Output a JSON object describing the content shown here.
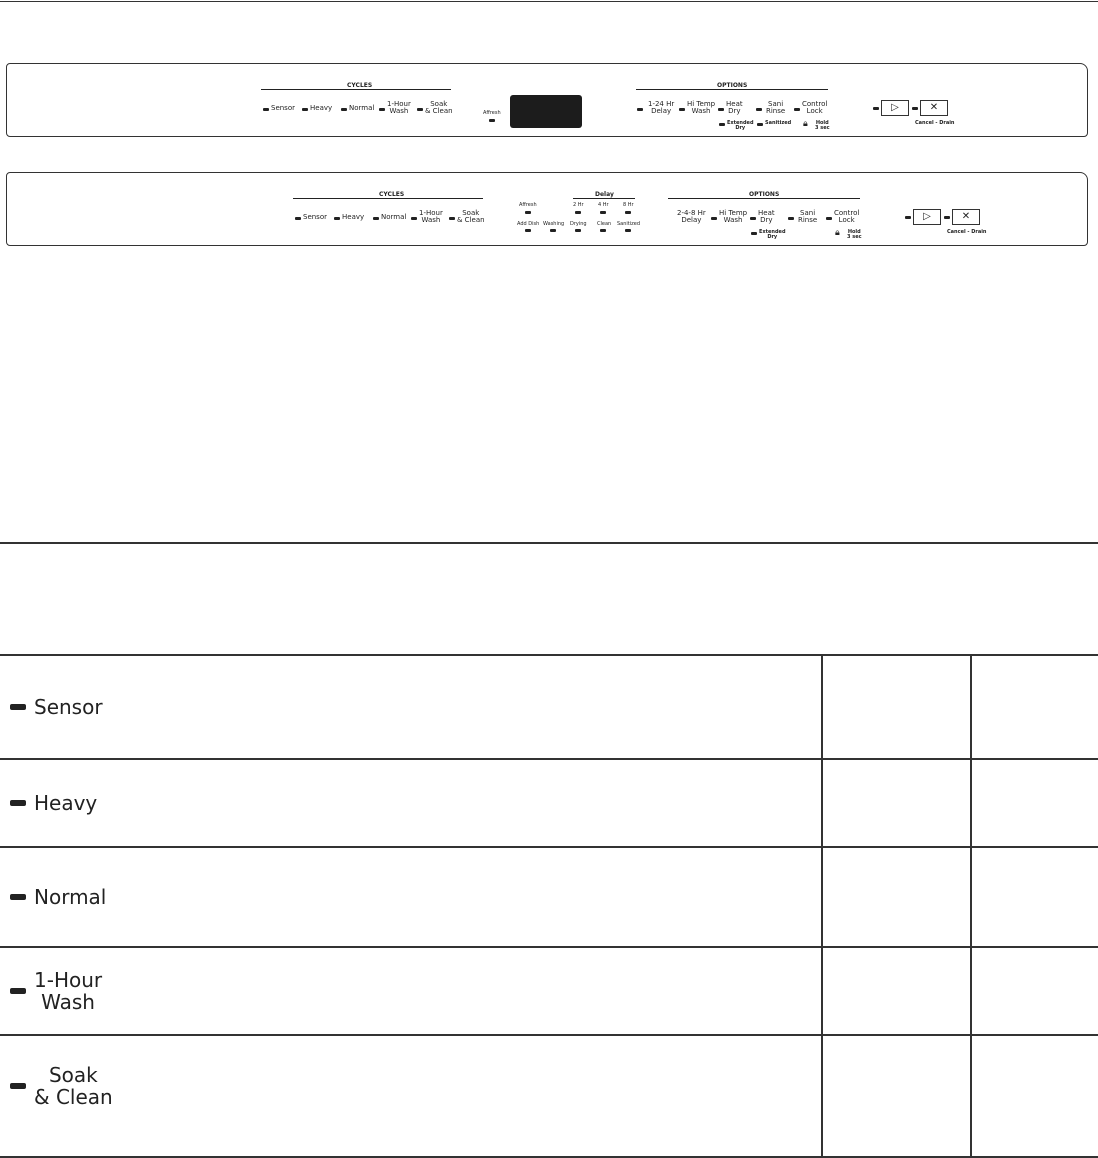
{
  "panel1": {
    "cycles_title": "CYCLES",
    "cycles": [
      "Sensor",
      "Heavy",
      "Normal",
      "1-Hour\nWash",
      "Soak\n& Clean"
    ],
    "affresh": "Affresh",
    "options_title": "OPTIONS",
    "options": [
      "1-24 Hr\nDelay",
      "Hi Temp\nWash",
      "Heat\nDry",
      "Sani\nRinse",
      "Control\nLock"
    ],
    "extended_dry": "Extended\nDry",
    "sanitized": "Sanitized",
    "hold": "Hold\n3 sec",
    "cancel_drain": "Cancel - Drain"
  },
  "panel2": {
    "cycles_title": "CYCLES",
    "cycles": [
      "Sensor",
      "Heavy",
      "Normal",
      "1-Hour\nWash",
      "Soak\n& Clean"
    ],
    "delay_title": "Delay",
    "status_top": [
      "Affresh",
      "2 Hr",
      "4 Hr",
      "8 Hr"
    ],
    "status_bottom": [
      "Add Dish",
      "Washing",
      "Drying",
      "Clean",
      "Sanitized"
    ],
    "options_title": "OPTIONS",
    "options": [
      "2-4-8 Hr\nDelay",
      "Hi Temp\nWash",
      "Heat\nDry",
      "Sani\nRinse",
      "Control\nLock"
    ],
    "extended_dry": "Extended\nDry",
    "hold": "Hold\n3 sec",
    "cancel_drain": "Cancel - Drain"
  },
  "table": {
    "rows": [
      {
        "label": "Sensor"
      },
      {
        "label": "Heavy"
      },
      {
        "label": "Normal"
      },
      {
        "label": "1-Hour\nWash"
      },
      {
        "label": "Soak\n& Clean"
      }
    ]
  },
  "icons": {
    "start": "play-icon",
    "cancel": "x-icon",
    "lock": "lock-icon"
  }
}
